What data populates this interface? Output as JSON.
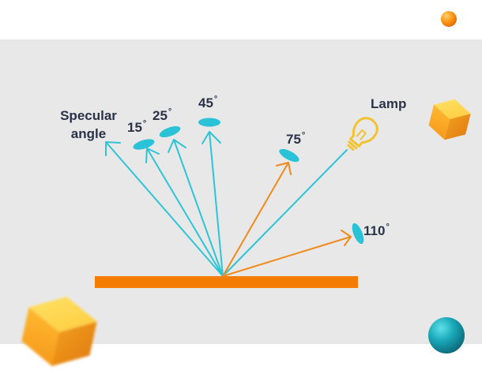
{
  "labels": {
    "specular_line1": "Specular",
    "specular_line2": "angle",
    "angle_15": "15",
    "angle_25": "25",
    "angle_45": "45",
    "angle_75": "75",
    "angle_110": "110",
    "degree_symbol": "°",
    "lamp": "Lamp"
  },
  "colors": {
    "background_panel": "#e8e8e8",
    "surface": "#f47c00",
    "incident_reflected_rays": "#2ec4d6",
    "measurement_rays": "#f08a1a",
    "detectors": "#29c2d6",
    "lamp": "#f2c230",
    "text": "#2b3348"
  },
  "icons": [
    "lamp-bulb-icon",
    "cube-icon",
    "sphere-icon"
  ]
}
